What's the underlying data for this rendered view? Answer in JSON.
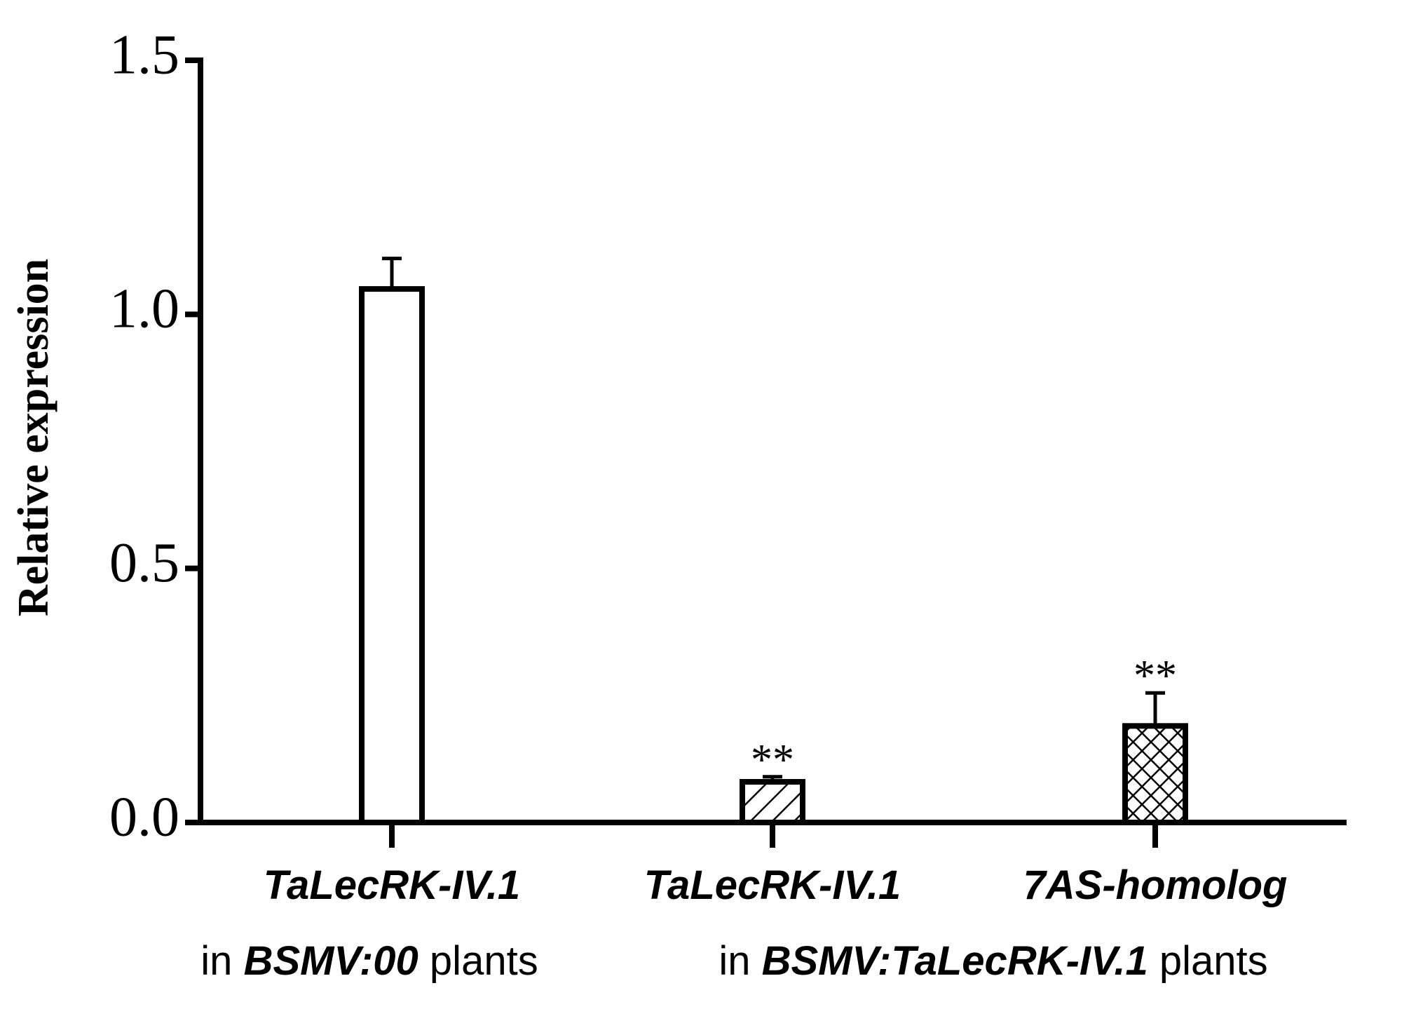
{
  "chart_data": {
    "type": "bar",
    "y_label": "Relative expression",
    "categories": [
      "TaLecRK-IV.1",
      "TaLecRK-IV.1",
      "7AS-homolog"
    ],
    "values": [
      1.05,
      0.08,
      0.19
    ],
    "errors": [
      0.06,
      0.01,
      0.065
    ],
    "annotations": [
      null,
      "**",
      "**"
    ],
    "patterns": [
      "none",
      "diagonal",
      "crosshatch"
    ],
    "color": "#000000",
    "group_labels": [
      [
        {
          "text": "in ",
          "bold_italic": false
        },
        {
          "text": "BSMV:00",
          "bold_italic": true
        },
        {
          "text": " plants",
          "bold_italic": false
        }
      ],
      [
        {
          "text": "in ",
          "bold_italic": false
        },
        {
          "text": "BSMV:TaLecRK-IV.1",
          "bold_italic": true
        },
        {
          "text": " plants",
          "bold_italic": false
        }
      ]
    ],
    "ylim": [
      0,
      1.5
    ],
    "yticks": [
      {
        "value": 0,
        "label": "0.0"
      },
      0.5,
      {
        "value": 1,
        "label": "1.0"
      },
      1.5
    ],
    "grid": false
  }
}
